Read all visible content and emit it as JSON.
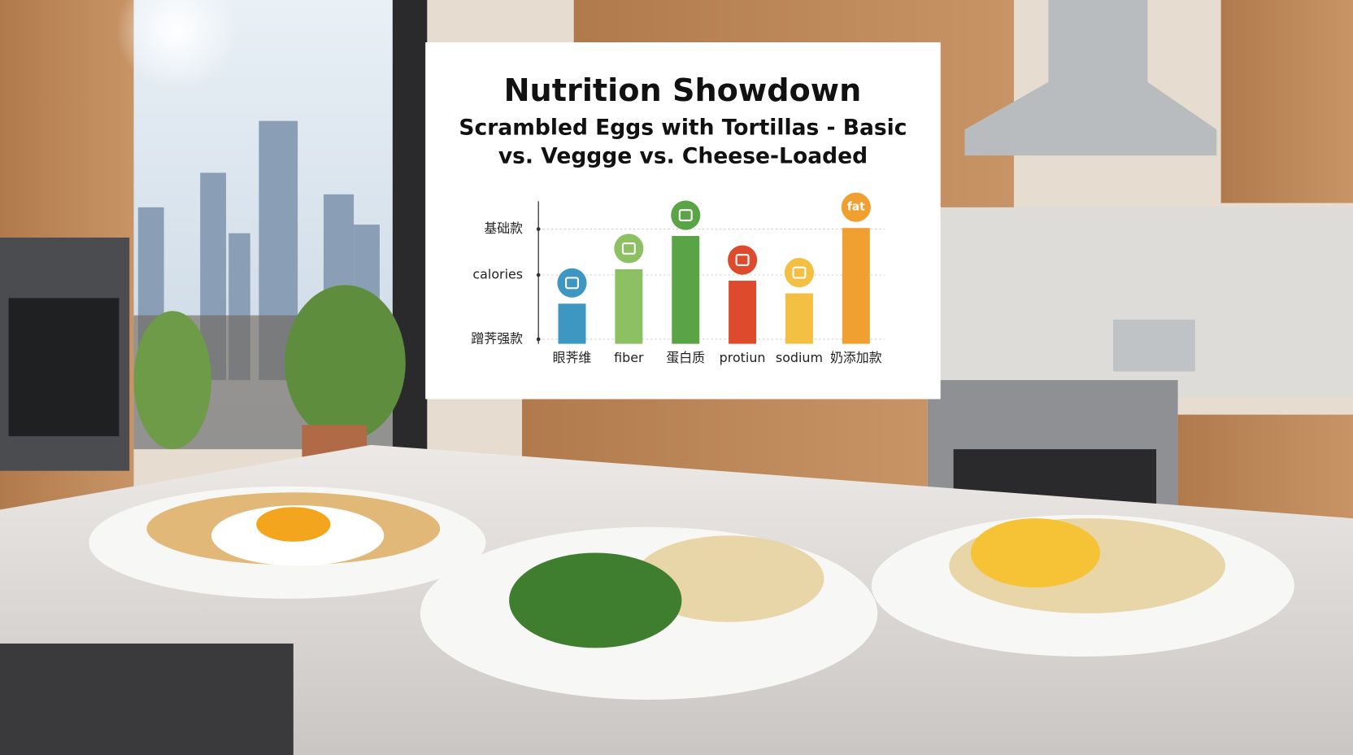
{
  "chart_data": {
    "type": "bar",
    "title": "Nutrition Showdown",
    "subtitle": "Scrambled Eggs with Tortillas - Basic vs. Veggge vs. Cheese-Loaded",
    "categories": [
      "眼荠维",
      "fiber",
      "蛋白质",
      "protiun",
      "sodium",
      "奶添加款"
    ],
    "values": [
      35,
      65,
      94,
      55,
      44,
      101
    ],
    "colors": [
      "#3d97c0",
      "#8cc063",
      "#5aa346",
      "#de4a2c",
      "#f3c043",
      "#f0a030"
    ],
    "annotations": [
      "fat"
    ],
    "ylim": [
      0,
      125
    ],
    "yticks": [
      {
        "value": 100,
        "label": "基础款"
      },
      {
        "value": 60,
        "label": "calories"
      },
      {
        "value": 4,
        "label": "蹭荠强款"
      }
    ],
    "grid": true
  }
}
